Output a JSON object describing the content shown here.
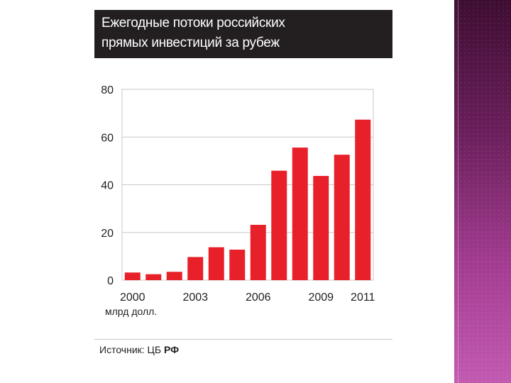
{
  "title": {
    "line1": "Ежегодные потоки российских",
    "line2": "прямых инвестиций за рубеж"
  },
  "unit_label": "млрд долл.",
  "source": {
    "prefix": "Источник: ЦБ",
    "emphasis": "РФ"
  },
  "colors": {
    "bar": "#e8202a",
    "title_bg": "#231f20",
    "grid": "#c8c8c8"
  },
  "chart_data": {
    "type": "bar",
    "title": "Ежегодные потоки российских прямых инвестиций за рубеж",
    "ylabel": "млрд долл.",
    "xlabel": "",
    "categories": [
      "2000",
      "2001",
      "2002",
      "2003",
      "2004",
      "2005",
      "2006",
      "2007",
      "2008",
      "2009",
      "2010",
      "2011"
    ],
    "values": [
      3.2,
      2.5,
      3.5,
      9.7,
      13.8,
      12.8,
      23.2,
      45.9,
      55.6,
      43.7,
      52.6,
      67.3
    ],
    "x_tick_labels": [
      "2000",
      "2003",
      "2006",
      "2009",
      "2011"
    ],
    "ylim": [
      0,
      80
    ],
    "y_ticks": [
      0,
      20,
      40,
      60,
      80
    ],
    "grid": true,
    "legend": "none"
  }
}
